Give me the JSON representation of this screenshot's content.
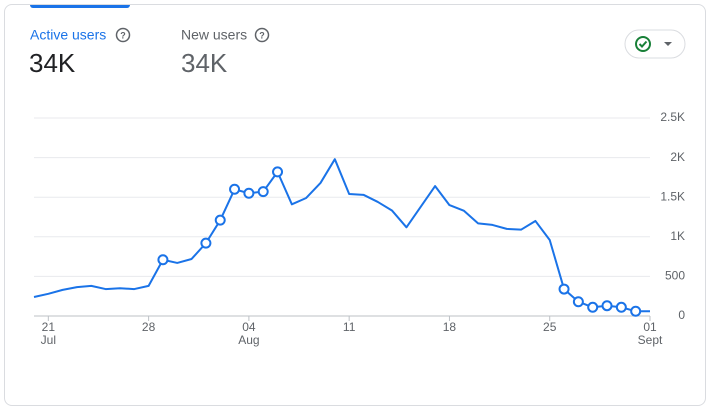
{
  "header": {
    "metrics": [
      {
        "label": "Active users",
        "value": "34K"
      },
      {
        "label": "New users",
        "value": "34K"
      }
    ]
  },
  "chart_data": {
    "type": "line",
    "categories": [
      null,
      [
        "21",
        "Jul"
      ],
      null,
      null,
      null,
      null,
      null,
      null,
      [
        "28"
      ],
      null,
      null,
      null,
      null,
      null,
      null,
      [
        "04",
        "Aug"
      ],
      null,
      null,
      null,
      null,
      null,
      null,
      [
        "11"
      ],
      null,
      null,
      null,
      null,
      null,
      null,
      [
        "18"
      ],
      null,
      null,
      null,
      null,
      null,
      null,
      [
        "25"
      ],
      null,
      null,
      null,
      null,
      null,
      null,
      [
        "01",
        "Sept"
      ]
    ],
    "series": [
      {
        "name": "Active users",
        "color": "#1a73e8",
        "values": [
          240,
          280,
          330,
          365,
          380,
          340,
          350,
          340,
          380,
          710,
          670,
          720,
          920,
          1210,
          1600,
          1550,
          1570,
          1820,
          1410,
          1490,
          1680,
          1980,
          1540,
          1530,
          1440,
          1330,
          1120,
          1380,
          1640,
          1400,
          1330,
          1170,
          1150,
          1100,
          1090,
          1200,
          960,
          340,
          180,
          110,
          130,
          110,
          60,
          60
        ],
        "highlighted": [
          9,
          12,
          13,
          14,
          15,
          16,
          17,
          37,
          38,
          39,
          40,
          41,
          42
        ]
      }
    ],
    "ylim": [
      0,
      2500
    ],
    "yticks": [
      0,
      500,
      {
        "value": 1000,
        "label": "1K"
      },
      {
        "value": 1500,
        "label": "1.5K"
      },
      {
        "value": 2000,
        "label": "2K"
      },
      {
        "value": 2500,
        "label": "2.5K"
      }
    ],
    "grid": true
  }
}
